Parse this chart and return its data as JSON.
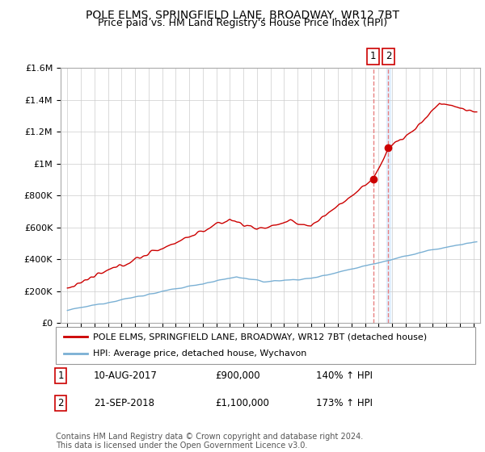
{
  "title": "POLE ELMS, SPRINGFIELD LANE, BROADWAY, WR12 7BT",
  "subtitle": "Price paid vs. HM Land Registry's House Price Index (HPI)",
  "legend_label_red": "POLE ELMS, SPRINGFIELD LANE, BROADWAY, WR12 7BT (detached house)",
  "legend_label_blue": "HPI: Average price, detached house, Wychavon",
  "annotation1_date": "10-AUG-2017",
  "annotation1_price": "£900,000",
  "annotation1_hpi": "140% ↑ HPI",
  "annotation2_date": "21-SEP-2018",
  "annotation2_price": "£1,100,000",
  "annotation2_hpi": "173% ↑ HPI",
  "footnote": "Contains HM Land Registry data © Crown copyright and database right 2024.\nThis data is licensed under the Open Government Licence v3.0.",
  "ylim": [
    0,
    1600000
  ],
  "yticks": [
    0,
    200000,
    400000,
    600000,
    800000,
    1000000,
    1200000,
    1400000,
    1600000
  ],
  "ytick_labels": [
    "£0",
    "£200K",
    "£400K",
    "£600K",
    "£800K",
    "£1M",
    "£1.2M",
    "£1.4M",
    "£1.6M"
  ],
  "xlim_start": 1994.5,
  "xlim_end": 2025.5,
  "point1_x": 2017.6,
  "point1_y": 900000,
  "point2_x": 2018.72,
  "point2_y": 1100000,
  "red_color": "#cc0000",
  "blue_color": "#7ab0d4",
  "vline_color": "#e88080",
  "band_color": "#ddeeff",
  "background_color": "#ffffff",
  "grid_color": "#cccccc",
  "title_fontsize": 10,
  "subtitle_fontsize": 9,
  "axis_fontsize": 8,
  "legend_fontsize": 8,
  "annot_fontsize": 8.5,
  "footnote_fontsize": 7
}
